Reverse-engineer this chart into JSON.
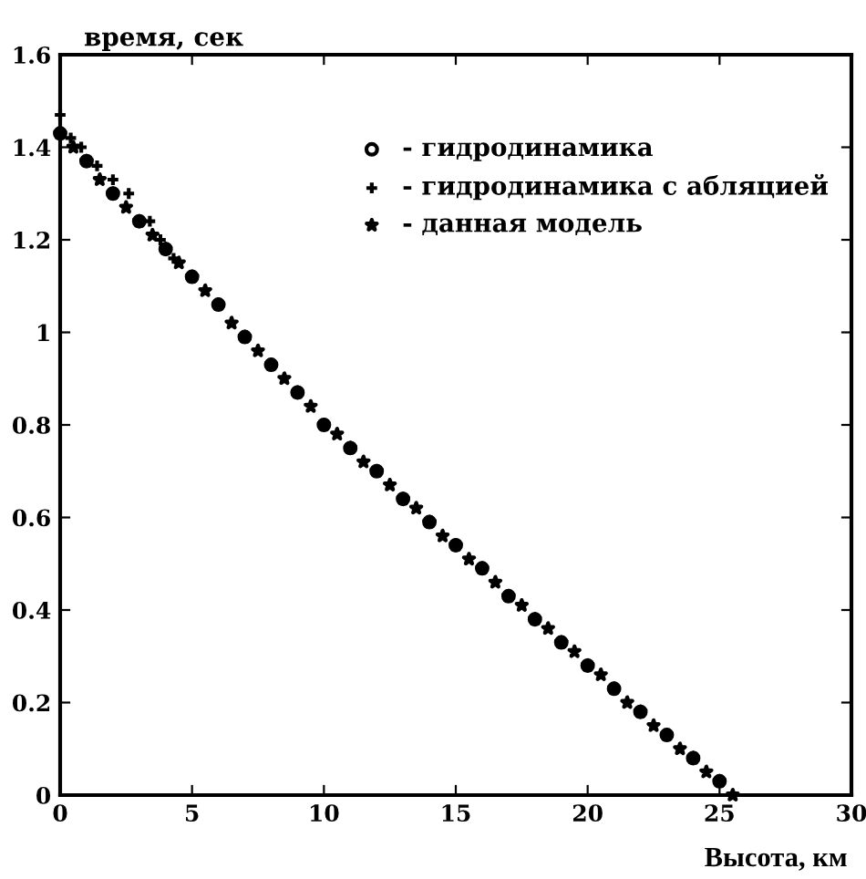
{
  "chart_data": {
    "type": "scatter",
    "xlabel": "Высота, км",
    "ylabel": "время, сек",
    "xlim": [
      0,
      30
    ],
    "ylim": [
      0,
      1.6
    ],
    "xticks": [
      0,
      5,
      10,
      15,
      20,
      25,
      30
    ],
    "yticks": [
      0,
      0.2,
      0.4,
      0.6,
      0.8,
      1,
      1.2,
      1.4,
      1.6
    ],
    "grid": false,
    "legend": "top right",
    "series": [
      {
        "name": "- гидродинамика",
        "color": "#000000",
        "marker": "circle",
        "x": [
          0,
          1,
          2,
          3,
          4,
          5,
          6,
          7,
          8,
          9,
          10,
          11,
          12,
          13,
          14,
          15,
          16,
          17,
          18,
          19,
          20,
          21,
          22,
          23,
          24,
          25
        ],
        "values": [
          1.43,
          1.37,
          1.3,
          1.24,
          1.18,
          1.12,
          1.06,
          0.99,
          0.93,
          0.87,
          0.8,
          0.75,
          0.7,
          0.64,
          0.59,
          0.54,
          0.49,
          0.43,
          0.38,
          0.33,
          0.28,
          0.23,
          0.18,
          0.13,
          0.08,
          0.03
        ]
      },
      {
        "name": "- гидродинамика с абляцией",
        "color": "#000000",
        "marker": "cross",
        "x": [
          0,
          0.4,
          0.8,
          1.4,
          2,
          2.6,
          3.4,
          3.8,
          4.3
        ],
        "values": [
          1.47,
          1.42,
          1.4,
          1.36,
          1.33,
          1.3,
          1.24,
          1.2,
          1.16
        ]
      },
      {
        "name": "- данная модель",
        "color": "#000000",
        "marker": "star",
        "x": [
          0,
          0.5,
          1,
          1.5,
          2,
          2.5,
          3,
          3.5,
          4,
          4.5,
          5,
          5.5,
          6,
          6.5,
          7,
          7.5,
          8,
          8.5,
          9,
          9.5,
          10,
          10.5,
          11,
          11.5,
          12,
          12.5,
          13,
          13.5,
          14,
          14.5,
          15,
          15.5,
          16,
          16.5,
          17,
          17.5,
          18,
          18.5,
          19,
          19.5,
          20,
          20.5,
          21,
          21.5,
          22,
          22.5,
          23,
          23.5,
          24,
          24.5,
          25,
          25.5
        ],
        "values": [
          1.43,
          1.4,
          1.37,
          1.33,
          1.3,
          1.27,
          1.24,
          1.21,
          1.18,
          1.15,
          1.12,
          1.09,
          1.06,
          1.02,
          0.99,
          0.96,
          0.93,
          0.9,
          0.87,
          0.84,
          0.8,
          0.78,
          0.75,
          0.72,
          0.7,
          0.67,
          0.64,
          0.62,
          0.59,
          0.56,
          0.54,
          0.51,
          0.49,
          0.46,
          0.43,
          0.41,
          0.38,
          0.36,
          0.33,
          0.31,
          0.28,
          0.26,
          0.23,
          0.2,
          0.18,
          0.15,
          0.13,
          0.1,
          0.08,
          0.05,
          0.03,
          0
        ]
      }
    ]
  }
}
